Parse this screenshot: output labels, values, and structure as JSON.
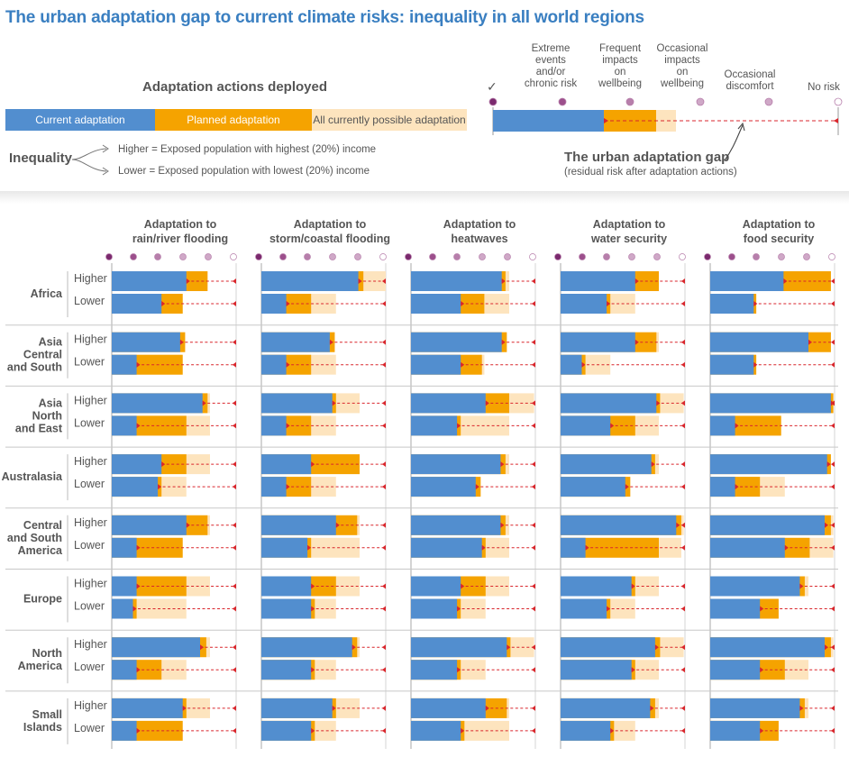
{
  "title": "The urban adaptation gap to current climate risks: inequality in all world regions",
  "legend": {
    "actions_heading": "Adaptation actions deployed",
    "current": "Current adaptation",
    "planned": "Planned adaptation",
    "possible": "All currently possible adaptation",
    "inequality_label": "Inequality",
    "higher_def": "Higher = Exposed population with highest (20%) income",
    "lower_def": "Lower = Exposed population with lowest (20%) income",
    "gap_title": "The urban adaptation gap",
    "gap_sub": "(residual risk after adaptation actions)",
    "check_mark": "✓",
    "risk_levels": [
      "Extreme events and/or chronic risk",
      "Frequent impacts on wellbeing",
      "Occasional impacts on wellbeing",
      "Occasional discomfort",
      "No risk"
    ],
    "risk_levels_lines": [
      [
        "Extreme",
        "events",
        "and/or",
        "chronic risk"
      ],
      [
        "Frequent",
        "impacts",
        "on",
        "wellbeing"
      ],
      [
        "Occasional",
        "impacts",
        "on",
        "wellbeing"
      ],
      [
        "Occasional",
        "discomfort"
      ],
      [
        "No risk"
      ]
    ]
  },
  "colors": {
    "current": "#528ecf",
    "planned": "#f5a300",
    "possible": "#fde4be",
    "gap_line": "#d9262c",
    "title": "#3a7fc1",
    "risk_dots": [
      "#7b2a6e",
      "#9c4f8c",
      "#b77fab",
      "#cfa8c7",
      "#ffffff"
    ]
  },
  "chart_data": {
    "type": "bar",
    "description_units": "fraction of the adaptation scale (0 = extreme risk, 1 = no risk)",
    "hazards": [
      [
        "Adaptation to",
        "rain/river flooding"
      ],
      [
        "Adaptation to",
        "storm/coastal flooding"
      ],
      [
        "Adaptation to",
        "heatwaves"
      ],
      [
        "Adaptation to",
        "water security"
      ],
      [
        "Adaptation to",
        "food security"
      ]
    ],
    "row_labels": [
      "Higher",
      "Lower"
    ],
    "regions": [
      {
        "name": [
          "Africa"
        ],
        "data": [
          [
            [
              0.6,
              0.77,
              0.77
            ],
            [
              0.4,
              0.57,
              0.57
            ]
          ],
          [
            [
              0.78,
              0.82,
              1.0
            ],
            [
              0.2,
              0.4,
              0.6
            ]
          ],
          [
            [
              0.73,
              0.76,
              0.79
            ],
            [
              0.4,
              0.59,
              0.79
            ]
          ],
          [
            [
              0.6,
              0.79,
              0.79
            ],
            [
              0.37,
              0.4,
              0.6
            ]
          ],
          [
            [
              0.59,
              0.97,
              0.97
            ],
            [
              0.35,
              0.37,
              0.37
            ]
          ]
        ]
      },
      {
        "name": [
          "Asia",
          "Central",
          "and South"
        ],
        "data": [
          [
            [
              0.55,
              0.59,
              0.59
            ],
            [
              0.2,
              0.57,
              0.57
            ]
          ],
          [
            [
              0.55,
              0.59,
              0.59
            ],
            [
              0.2,
              0.4,
              0.6
            ]
          ],
          [
            [
              0.73,
              0.77,
              0.77
            ],
            [
              0.4,
              0.57,
              0.59
            ]
          ],
          [
            [
              0.6,
              0.77,
              0.79
            ],
            [
              0.17,
              0.2,
              0.4
            ]
          ],
          [
            [
              0.79,
              0.97,
              0.97
            ],
            [
              0.35,
              0.37,
              0.37
            ]
          ]
        ]
      },
      {
        "name": [
          "Asia",
          "North",
          "and East"
        ],
        "data": [
          [
            [
              0.73,
              0.77,
              0.79
            ],
            [
              0.2,
              0.6,
              0.79
            ]
          ],
          [
            [
              0.57,
              0.6,
              0.79
            ],
            [
              0.2,
              0.4,
              0.6
            ]
          ],
          [
            [
              0.6,
              0.79,
              0.99
            ],
            [
              0.37,
              0.4,
              0.79
            ]
          ],
          [
            [
              0.77,
              0.8,
              0.99
            ],
            [
              0.4,
              0.6,
              0.79
            ]
          ],
          [
            [
              0.97,
              0.99,
              0.99
            ],
            [
              0.2,
              0.57,
              0.57
            ]
          ]
        ]
      },
      {
        "name": [
          "Australasia"
        ],
        "data": [
          [
            [
              0.4,
              0.6,
              0.79
            ],
            [
              0.37,
              0.4,
              0.6
            ]
          ],
          [
            [
              0.4,
              0.79,
              0.79
            ],
            [
              0.2,
              0.4,
              0.6
            ]
          ],
          [
            [
              0.72,
              0.76,
              0.79
            ],
            [
              0.52,
              0.56,
              0.56
            ]
          ],
          [
            [
              0.73,
              0.76,
              0.79
            ],
            [
              0.52,
              0.56,
              0.56
            ]
          ],
          [
            [
              0.94,
              0.97,
              0.97
            ],
            [
              0.2,
              0.4,
              0.6
            ]
          ]
        ]
      },
      {
        "name": [
          "Central",
          "and South",
          "America"
        ],
        "data": [
          [
            [
              0.6,
              0.77,
              0.79
            ],
            [
              0.2,
              0.57,
              0.57
            ]
          ],
          [
            [
              0.6,
              0.77,
              0.79
            ],
            [
              0.37,
              0.4,
              0.79
            ]
          ],
          [
            [
              0.72,
              0.76,
              0.79
            ],
            [
              0.57,
              0.6,
              0.79
            ]
          ],
          [
            [
              0.93,
              0.97,
              0.99
            ],
            [
              0.2,
              0.79,
              0.97
            ]
          ],
          [
            [
              0.92,
              0.97,
              0.99
            ],
            [
              0.6,
              0.8,
              0.99
            ]
          ]
        ]
      },
      {
        "name": [
          "Europe"
        ],
        "data": [
          [
            [
              0.2,
              0.6,
              0.79
            ],
            [
              0.17,
              0.2,
              0.6
            ]
          ],
          [
            [
              0.4,
              0.6,
              0.79
            ],
            [
              0.4,
              0.43,
              0.6
            ]
          ],
          [
            [
              0.4,
              0.6,
              0.79
            ],
            [
              0.37,
              0.4,
              0.6
            ]
          ],
          [
            [
              0.57,
              0.6,
              0.79
            ],
            [
              0.37,
              0.4,
              0.6
            ]
          ],
          [
            [
              0.72,
              0.76,
              0.79
            ],
            [
              0.4,
              0.55,
              0.55
            ]
          ]
        ]
      },
      {
        "name": [
          "North",
          "America"
        ],
        "data": [
          [
            [
              0.71,
              0.76,
              0.79
            ],
            [
              0.2,
              0.4,
              0.6
            ]
          ],
          [
            [
              0.73,
              0.77,
              0.79
            ],
            [
              0.4,
              0.43,
              0.6
            ]
          ],
          [
            [
              0.77,
              0.8,
              0.99
            ],
            [
              0.37,
              0.4,
              0.6
            ]
          ],
          [
            [
              0.76,
              0.8,
              0.99
            ],
            [
              0.57,
              0.6,
              0.79
            ]
          ],
          [
            [
              0.92,
              0.97,
              0.99
            ],
            [
              0.4,
              0.6,
              0.79
            ]
          ]
        ]
      },
      {
        "name": [
          "Small",
          "Islands"
        ],
        "data": [
          [
            [
              0.57,
              0.6,
              0.79
            ],
            [
              0.2,
              0.57,
              0.57
            ]
          ],
          [
            [
              0.57,
              0.6,
              0.79
            ],
            [
              0.4,
              0.43,
              0.6
            ]
          ],
          [
            [
              0.6,
              0.77,
              0.79
            ],
            [
              0.4,
              0.43,
              0.79
            ]
          ],
          [
            [
              0.72,
              0.76,
              0.79
            ],
            [
              0.4,
              0.43,
              0.6
            ]
          ],
          [
            [
              0.72,
              0.76,
              0.79
            ],
            [
              0.4,
              0.55,
              0.55
            ]
          ]
        ]
      }
    ]
  }
}
